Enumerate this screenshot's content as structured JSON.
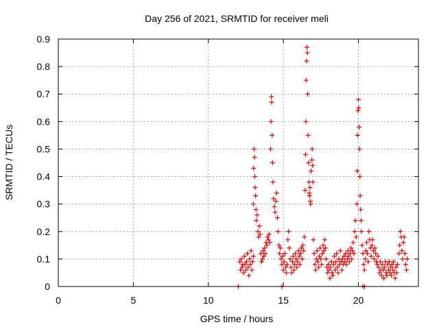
{
  "chart_data": {
    "type": "scatter",
    "title": "Day 256 of 2021, SRMTID for receiver meli",
    "xlabel": "GPS time / hours",
    "ylabel": "SRMTID / TECUs",
    "xlim": [
      0,
      24
    ],
    "ylim": [
      0,
      0.9
    ],
    "xticks": [
      0,
      5,
      10,
      15,
      20
    ],
    "yticks": [
      0,
      0.1,
      0.2,
      0.3,
      0.4,
      0.5,
      0.6,
      0.7,
      0.8,
      0.9
    ],
    "xtick_labels": [
      "0",
      "5",
      "10",
      "15",
      "20"
    ],
    "ytick_labels": [
      "0",
      "0.1",
      "0.2",
      "0.3",
      "0.4",
      "0.5",
      "0.6",
      "0.7",
      "0.8",
      "0.9"
    ],
    "grid": true,
    "marker": "+",
    "color": "#e00000",
    "series": [
      {
        "name": "SRMTID",
        "points": [
          [
            12.0,
            0.0
          ],
          [
            14.9,
            0.0
          ],
          [
            20.3,
            0.0
          ],
          [
            20.4,
            0.0
          ],
          [
            12.1,
            0.09
          ],
          [
            12.15,
            0.06
          ],
          [
            12.2,
            0.1
          ],
          [
            12.25,
            0.07
          ],
          [
            12.3,
            0.08
          ],
          [
            12.35,
            0.05
          ],
          [
            12.4,
            0.11
          ],
          [
            12.45,
            0.08
          ],
          [
            12.5,
            0.06
          ],
          [
            12.55,
            0.09
          ],
          [
            12.6,
            0.12
          ],
          [
            12.65,
            0.07
          ],
          [
            12.7,
            0.04
          ],
          [
            12.75,
            0.1
          ],
          [
            12.8,
            0.08
          ],
          [
            12.85,
            0.13
          ],
          [
            12.9,
            0.06
          ],
          [
            12.95,
            0.09
          ],
          [
            13.0,
            0.11
          ],
          [
            13.0,
            0.3
          ],
          [
            13.02,
            0.43
          ],
          [
            13.05,
            0.5
          ],
          [
            13.08,
            0.47
          ],
          [
            13.1,
            0.4
          ],
          [
            13.12,
            0.36
          ],
          [
            13.15,
            0.33
          ],
          [
            13.18,
            0.28
          ],
          [
            13.2,
            0.24
          ],
          [
            13.25,
            0.26
          ],
          [
            13.3,
            0.2
          ],
          [
            13.35,
            0.18
          ],
          [
            13.4,
            0.22
          ],
          [
            13.45,
            0.19
          ],
          [
            13.5,
            0.12
          ],
          [
            13.55,
            0.09
          ],
          [
            13.6,
            0.1
          ],
          [
            13.65,
            0.13
          ],
          [
            13.7,
            0.11
          ],
          [
            13.75,
            0.14
          ],
          [
            13.8,
            0.12
          ],
          [
            13.85,
            0.16
          ],
          [
            13.9,
            0.15
          ],
          [
            13.95,
            0.18
          ],
          [
            14.0,
            0.17
          ],
          [
            14.05,
            0.19
          ],
          [
            14.1,
            0.16
          ],
          [
            14.15,
            0.5
          ],
          [
            14.18,
            0.6
          ],
          [
            14.2,
            0.69
          ],
          [
            14.22,
            0.67
          ],
          [
            14.25,
            0.55
          ],
          [
            14.28,
            0.45
          ],
          [
            14.3,
            0.38
          ],
          [
            14.35,
            0.32
          ],
          [
            14.4,
            0.29
          ],
          [
            14.45,
            0.27
          ],
          [
            14.5,
            0.31
          ],
          [
            14.55,
            0.34
          ],
          [
            14.6,
            0.25
          ],
          [
            14.65,
            0.2
          ],
          [
            14.7,
            0.15
          ],
          [
            14.75,
            0.12
          ],
          [
            14.8,
            0.14
          ],
          [
            14.85,
            0.1
          ],
          [
            14.9,
            0.08
          ],
          [
            14.95,
            0.11
          ],
          [
            15.0,
            0.06
          ],
          [
            15.05,
            0.09
          ],
          [
            15.1,
            0.12
          ],
          [
            15.15,
            0.07
          ],
          [
            15.2,
            0.05
          ],
          [
            15.25,
            0.08
          ],
          [
            15.3,
            0.17
          ],
          [
            15.35,
            0.2
          ],
          [
            15.4,
            0.14
          ],
          [
            15.45,
            0.1
          ],
          [
            15.5,
            0.07
          ],
          [
            15.55,
            0.05
          ],
          [
            15.6,
            0.09
          ],
          [
            15.65,
            0.11
          ],
          [
            15.7,
            0.06
          ],
          [
            15.75,
            0.08
          ],
          [
            15.8,
            0.12
          ],
          [
            15.85,
            0.1
          ],
          [
            15.9,
            0.07
          ],
          [
            15.95,
            0.09
          ],
          [
            16.0,
            0.13
          ],
          [
            16.05,
            0.11
          ],
          [
            16.1,
            0.08
          ],
          [
            16.15,
            0.12
          ],
          [
            16.2,
            0.14
          ],
          [
            16.25,
            0.1
          ],
          [
            16.3,
            0.15
          ],
          [
            16.35,
            0.13
          ],
          [
            16.4,
            0.18
          ],
          [
            16.45,
            0.35
          ],
          [
            16.48,
            0.48
          ],
          [
            16.5,
            0.6
          ],
          [
            16.52,
            0.75
          ],
          [
            16.55,
            0.82
          ],
          [
            16.57,
            0.87
          ],
          [
            16.6,
            0.85
          ],
          [
            16.62,
            0.7
          ],
          [
            16.65,
            0.55
          ],
          [
            16.68,
            0.45
          ],
          [
            16.7,
            0.38
          ],
          [
            16.72,
            0.34
          ],
          [
            16.75,
            0.33
          ],
          [
            16.78,
            0.36
          ],
          [
            16.8,
            0.31
          ],
          [
            16.82,
            0.3
          ],
          [
            16.85,
            0.42
          ],
          [
            16.9,
            0.46
          ],
          [
            16.92,
            0.5
          ],
          [
            16.95,
            0.44
          ],
          [
            16.97,
            0.38
          ],
          [
            17.0,
            0.17
          ],
          [
            17.05,
            0.12
          ],
          [
            17.1,
            0.08
          ],
          [
            17.15,
            0.06
          ],
          [
            17.2,
            0.1
          ],
          [
            17.25,
            0.13
          ],
          [
            17.3,
            0.09
          ],
          [
            17.35,
            0.07
          ],
          [
            17.4,
            0.11
          ],
          [
            17.45,
            0.14
          ],
          [
            17.5,
            0.1
          ],
          [
            17.55,
            0.08
          ],
          [
            17.6,
            0.12
          ],
          [
            17.65,
            0.15
          ],
          [
            17.7,
            0.13
          ],
          [
            17.75,
            0.17
          ],
          [
            17.8,
            0.14
          ],
          [
            17.85,
            0.1
          ],
          [
            17.9,
            0.07
          ],
          [
            17.95,
            0.05
          ],
          [
            18.0,
            0.08
          ],
          [
            18.05,
            0.06
          ],
          [
            18.1,
            0.03
          ],
          [
            18.15,
            0.07
          ],
          [
            18.2,
            0.09
          ],
          [
            18.25,
            0.05
          ],
          [
            18.3,
            0.04
          ],
          [
            18.35,
            0.08
          ],
          [
            18.4,
            0.11
          ],
          [
            18.45,
            0.06
          ],
          [
            18.5,
            0.09
          ],
          [
            18.55,
            0.12
          ],
          [
            18.6,
            0.07
          ],
          [
            18.65,
            0.05
          ],
          [
            18.7,
            0.1
          ],
          [
            18.75,
            0.08
          ],
          [
            18.8,
            0.13
          ],
          [
            18.85,
            0.09
          ],
          [
            18.9,
            0.06
          ],
          [
            18.95,
            0.1
          ],
          [
            19.0,
            0.08
          ],
          [
            19.05,
            0.11
          ],
          [
            19.1,
            0.09
          ],
          [
            19.15,
            0.12
          ],
          [
            19.2,
            0.08
          ],
          [
            19.25,
            0.1
          ],
          [
            19.3,
            0.13
          ],
          [
            19.35,
            0.11
          ],
          [
            19.4,
            0.09
          ],
          [
            19.45,
            0.12
          ],
          [
            19.5,
            0.14
          ],
          [
            19.55,
            0.1
          ],
          [
            19.6,
            0.13
          ],
          [
            19.65,
            0.16
          ],
          [
            19.7,
            0.12
          ],
          [
            19.75,
            0.2
          ],
          [
            19.8,
            0.24
          ],
          [
            19.85,
            0.18
          ],
          [
            19.9,
            0.3
          ],
          [
            19.92,
            0.42
          ],
          [
            19.95,
            0.55
          ],
          [
            19.97,
            0.64
          ],
          [
            20.0,
            0.68
          ],
          [
            20.02,
            0.65
          ],
          [
            20.05,
            0.58
          ],
          [
            20.08,
            0.5
          ],
          [
            20.1,
            0.4
          ],
          [
            20.12,
            0.33
          ],
          [
            20.15,
            0.28
          ],
          [
            20.18,
            0.24
          ],
          [
            20.2,
            0.2
          ],
          [
            20.25,
            0.15
          ],
          [
            20.3,
            0.12
          ],
          [
            20.35,
            0.08
          ],
          [
            20.4,
            0.06
          ],
          [
            20.45,
            0.1
          ],
          [
            20.5,
            0.13
          ],
          [
            20.55,
            0.16
          ],
          [
            20.6,
            0.12
          ],
          [
            20.65,
            0.09
          ],
          [
            20.7,
            0.2
          ],
          [
            20.75,
            0.17
          ],
          [
            20.8,
            0.14
          ],
          [
            20.85,
            0.11
          ],
          [
            20.9,
            0.15
          ],
          [
            20.95,
            0.17
          ],
          [
            21.0,
            0.13
          ],
          [
            21.05,
            0.1
          ],
          [
            21.1,
            0.14
          ],
          [
            21.15,
            0.12
          ],
          [
            21.2,
            0.09
          ],
          [
            21.25,
            0.08
          ],
          [
            21.3,
            0.11
          ],
          [
            21.35,
            0.07
          ],
          [
            21.4,
            0.05
          ],
          [
            21.45,
            0.09
          ],
          [
            21.5,
            0.06
          ],
          [
            21.55,
            0.04
          ],
          [
            21.6,
            0.08
          ],
          [
            21.65,
            0.06
          ],
          [
            21.7,
            0.03
          ],
          [
            21.75,
            0.07
          ],
          [
            21.8,
            0.09
          ],
          [
            21.85,
            0.05
          ],
          [
            21.9,
            0.04
          ],
          [
            21.95,
            0.08
          ],
          [
            22.0,
            0.06
          ],
          [
            22.05,
            0.09
          ],
          [
            22.1,
            0.05
          ],
          [
            22.15,
            0.07
          ],
          [
            22.2,
            0.04
          ],
          [
            22.25,
            0.08
          ],
          [
            22.3,
            0.06
          ],
          [
            22.35,
            0.09
          ],
          [
            22.4,
            0.05
          ],
          [
            22.45,
            0.03
          ],
          [
            22.5,
            0.07
          ],
          [
            22.55,
            0.05
          ],
          [
            22.6,
            0.08
          ],
          [
            22.7,
            0.12
          ],
          [
            22.75,
            0.15
          ],
          [
            22.8,
            0.2
          ],
          [
            22.85,
            0.18
          ],
          [
            22.9,
            0.13
          ],
          [
            22.95,
            0.1
          ],
          [
            23.0,
            0.16
          ],
          [
            23.05,
            0.18
          ],
          [
            23.1,
            0.12
          ],
          [
            23.15,
            0.08
          ],
          [
            23.2,
            0.06
          ],
          [
            23.25,
            0.1
          ]
        ]
      }
    ]
  }
}
